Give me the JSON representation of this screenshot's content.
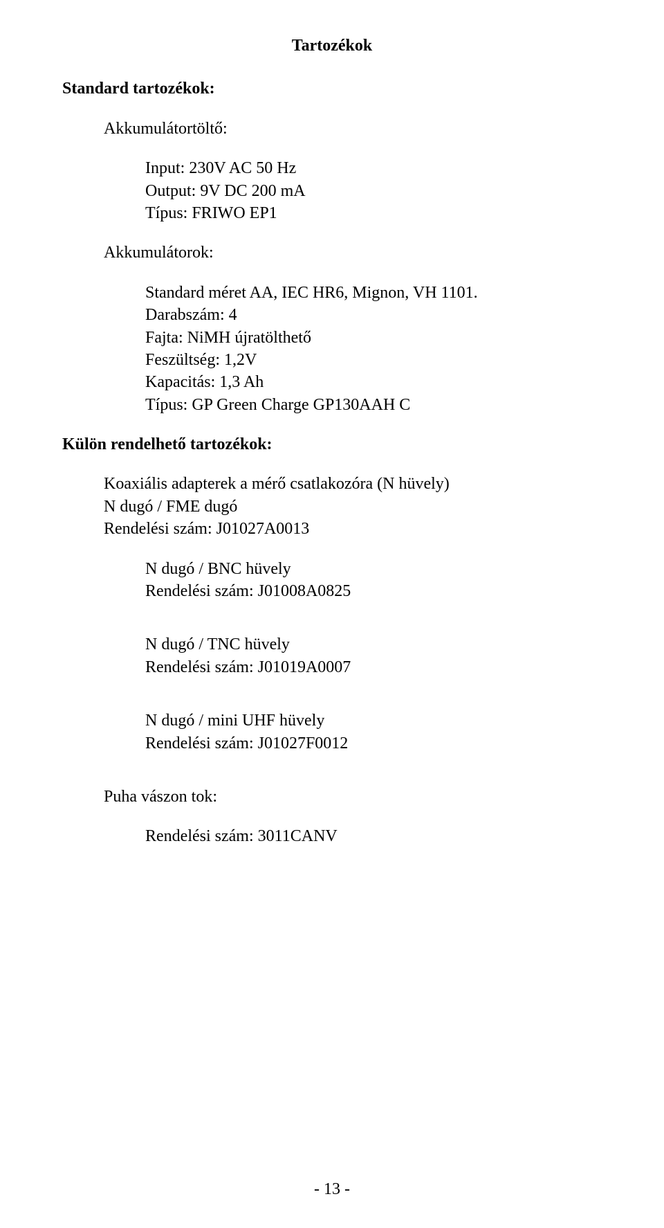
{
  "title": "Tartozékok",
  "sections": {
    "std_heading": "Standard tartozékok:",
    "charger_heading": "Akkumulátortöltő:",
    "charger": {
      "l1": "Input: 230V AC 50 Hz",
      "l2": "Output: 9V DC 200 mA",
      "l3": "Típus: FRIWO EP1"
    },
    "batt_heading": "Akkumulátorok:",
    "batt": {
      "l1": "Standard méret AA, IEC HR6, Mignon, VH 1101.",
      "l2": "Darabszám: 4",
      "l3": "Fajta: NiMH újratölthető",
      "l4": "Feszültség: 1,2V",
      "l5": "Kapacitás: 1,3 Ah",
      "l6": "Típus: GP Green Charge GP130AAH C"
    },
    "opt_heading": "Külön rendelhető tartozékok:",
    "coax": {
      "l1": "Koaxiális adapterek a mérő csatlakozóra (N hüvely)",
      "l2": "N dugó / FME dugó",
      "l3": "Rendelési szám: J01027A0013"
    },
    "bnc": {
      "l1": "N dugó / BNC hüvely",
      "l2": "Rendelési szám: J01008A0825"
    },
    "tnc": {
      "l1": "N dugó / TNC hüvely",
      "l2": "Rendelési szám: J01019A0007"
    },
    "uhf": {
      "l1": "N dugó / mini UHF hüvely",
      "l2": "Rendelési szám: J01027F0012"
    },
    "case_heading": "Puha vászon tok:",
    "case": {
      "l1": "Rendelési szám: 3011CANV"
    }
  },
  "page_number": "- 13 -"
}
